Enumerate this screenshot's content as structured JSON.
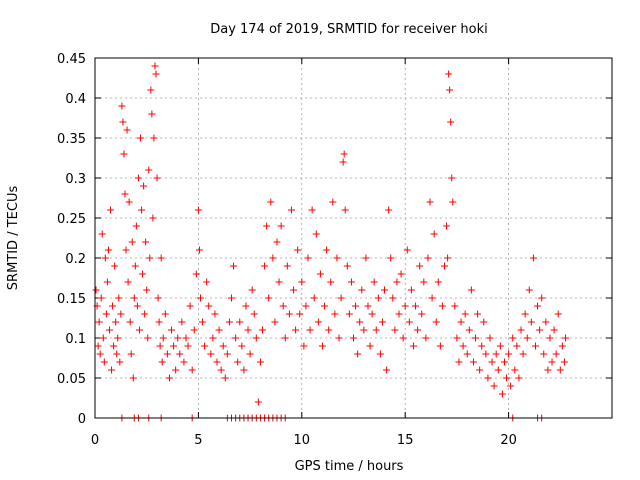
{
  "chart_data": {
    "type": "scatter",
    "title": "Day 174 of 2019, SRMTID for receiver hoki",
    "xlabel": "GPS time / hours",
    "ylabel": "SRMTID / TECUs",
    "xlim": [
      0,
      25
    ],
    "ylim": [
      0,
      0.45
    ],
    "xticks": [
      0,
      5,
      10,
      15,
      20
    ],
    "yticks": [
      0,
      0.05,
      0.1,
      0.15,
      0.2,
      0.25,
      0.3,
      0.35,
      0.4,
      0.45
    ],
    "ytick_labels": [
      "0",
      "0.05",
      "0.1",
      "0.15",
      "0.2",
      "0.25",
      "0.3",
      "0.35",
      "0.4",
      "0.45"
    ],
    "grid": true,
    "marker": "+",
    "series": [
      {
        "color": "#ff0000",
        "points": [
          [
            0.05,
            0.16
          ],
          [
            0.1,
            0.14
          ],
          [
            0.15,
            0.09
          ],
          [
            0.2,
            0.12
          ],
          [
            0.25,
            0.08
          ],
          [
            0.3,
            0.15
          ],
          [
            0.35,
            0.23
          ],
          [
            0.4,
            0.1
          ],
          [
            0.45,
            0.07
          ],
          [
            0.5,
            0.2
          ],
          [
            0.55,
            0.13
          ],
          [
            0.6,
            0.17
          ],
          [
            0.65,
            0.21
          ],
          [
            0.7,
            0.11
          ],
          [
            0.75,
            0.26
          ],
          [
            0.8,
            0.06
          ],
          [
            0.85,
            0.14
          ],
          [
            0.9,
            0.09
          ],
          [
            0.95,
            0.19
          ],
          [
            1.0,
            0.12
          ],
          [
            1.05,
            0.08
          ],
          [
            1.1,
            0.1
          ],
          [
            1.15,
            0.15
          ],
          [
            1.2,
            0.07
          ],
          [
            1.25,
            0.13
          ],
          [
            1.3,
            0.39
          ],
          [
            1.35,
            0.37
          ],
          [
            1.4,
            0.33
          ],
          [
            1.45,
            0.28
          ],
          [
            1.5,
            0.21
          ],
          [
            1.55,
            0.36
          ],
          [
            1.6,
            0.17
          ],
          [
            1.65,
            0.27
          ],
          [
            1.7,
            0.12
          ],
          [
            1.75,
            0.08
          ],
          [
            1.8,
            0.22
          ],
          [
            1.85,
            0.05
          ],
          [
            1.9,
            0.15
          ],
          [
            1.95,
            0.19
          ],
          [
            2.0,
            0.24
          ],
          [
            2.05,
            0.14
          ],
          [
            2.1,
            0.3
          ],
          [
            2.15,
            0.11
          ],
          [
            2.2,
            0.35
          ],
          [
            2.25,
            0.26
          ],
          [
            2.3,
            0.18
          ],
          [
            2.35,
            0.29
          ],
          [
            2.4,
            0.13
          ],
          [
            2.45,
            0.22
          ],
          [
            2.5,
            0.16
          ],
          [
            2.55,
            0.1
          ],
          [
            2.6,
            0.31
          ],
          [
            2.65,
            0.2
          ],
          [
            2.7,
            0.41
          ],
          [
            2.75,
            0.38
          ],
          [
            2.8,
            0.25
          ],
          [
            2.85,
            0.35
          ],
          [
            2.9,
            0.44
          ],
          [
            2.95,
            0.43
          ],
          [
            3.0,
            0.3
          ],
          [
            3.05,
            0.15
          ],
          [
            3.1,
            0.12
          ],
          [
            3.15,
            0.09
          ],
          [
            3.2,
            0.2
          ],
          [
            3.25,
            0.07
          ],
          [
            3.3,
            0.1
          ],
          [
            3.4,
            0.13
          ],
          [
            3.5,
            0.08
          ],
          [
            3.6,
            0.05
          ],
          [
            3.7,
            0.11
          ],
          [
            3.8,
            0.09
          ],
          [
            3.9,
            0.06
          ],
          [
            4.0,
            0.1
          ],
          [
            4.1,
            0.08
          ],
          [
            4.2,
            0.12
          ],
          [
            4.3,
            0.07
          ],
          [
            4.4,
            0.1
          ],
          [
            4.5,
            0.09
          ],
          [
            4.6,
            0.14
          ],
          [
            4.7,
            0.06
          ],
          [
            4.8,
            0.11
          ],
          [
            4.9,
            0.18
          ],
          [
            5.0,
            0.26
          ],
          [
            5.05,
            0.21
          ],
          [
            5.1,
            0.15
          ],
          [
            5.2,
            0.12
          ],
          [
            5.3,
            0.09
          ],
          [
            5.4,
            0.17
          ],
          [
            5.5,
            0.14
          ],
          [
            5.6,
            0.08
          ],
          [
            5.7,
            0.1
          ],
          [
            5.8,
            0.13
          ],
          [
            5.9,
            0.07
          ],
          [
            6.0,
            0.11
          ],
          [
            6.1,
            0.06
          ],
          [
            6.2,
            0.09
          ],
          [
            6.3,
            0.05
          ],
          [
            6.4,
            0.08
          ],
          [
            6.5,
            0.12
          ],
          [
            6.6,
            0.15
          ],
          [
            6.7,
            0.19
          ],
          [
            6.8,
            0.1
          ],
          [
            6.9,
            0.07
          ],
          [
            7.0,
            0.12
          ],
          [
            7.1,
            0.09
          ],
          [
            7.2,
            0.06
          ],
          [
            7.3,
            0.14
          ],
          [
            7.4,
            0.11
          ],
          [
            7.5,
            0.08
          ],
          [
            7.6,
            0.16
          ],
          [
            7.7,
            0.13
          ],
          [
            7.8,
            0.1
          ],
          [
            7.9,
            0.02
          ],
          [
            8.0,
            0.07
          ],
          [
            8.1,
            0.11
          ],
          [
            8.2,
            0.19
          ],
          [
            8.3,
            0.24
          ],
          [
            8.4,
            0.15
          ],
          [
            8.5,
            0.27
          ],
          [
            8.6,
            0.2
          ],
          [
            8.7,
            0.12
          ],
          [
            8.8,
            0.22
          ],
          [
            8.9,
            0.17
          ],
          [
            9.0,
            0.24
          ],
          [
            9.1,
            0.14
          ],
          [
            9.2,
            0.1
          ],
          [
            9.3,
            0.19
          ],
          [
            9.4,
            0.13
          ],
          [
            9.5,
            0.26
          ],
          [
            9.6,
            0.16
          ],
          [
            9.7,
            0.11
          ],
          [
            9.8,
            0.21
          ],
          [
            9.9,
            0.13
          ],
          [
            10.0,
            0.17
          ],
          [
            10.1,
            0.09
          ],
          [
            10.2,
            0.14
          ],
          [
            10.3,
            0.2
          ],
          [
            10.4,
            0.11
          ],
          [
            10.5,
            0.26
          ],
          [
            10.6,
            0.15
          ],
          [
            10.7,
            0.23
          ],
          [
            10.8,
            0.12
          ],
          [
            10.9,
            0.18
          ],
          [
            11.0,
            0.09
          ],
          [
            11.1,
            0.14
          ],
          [
            11.2,
            0.21
          ],
          [
            11.3,
            0.11
          ],
          [
            11.4,
            0.17
          ],
          [
            11.5,
            0.27
          ],
          [
            11.6,
            0.13
          ],
          [
            11.7,
            0.2
          ],
          [
            11.8,
            0.1
          ],
          [
            11.9,
            0.15
          ],
          [
            12.0,
            0.32
          ],
          [
            12.05,
            0.33
          ],
          [
            12.1,
            0.26
          ],
          [
            12.2,
            0.19
          ],
          [
            12.3,
            0.13
          ],
          [
            12.4,
            0.17
          ],
          [
            12.5,
            0.1
          ],
          [
            12.6,
            0.14
          ],
          [
            12.7,
            0.08
          ],
          [
            12.8,
            0.12
          ],
          [
            12.9,
            0.16
          ],
          [
            13.0,
            0.11
          ],
          [
            13.1,
            0.2
          ],
          [
            13.2,
            0.14
          ],
          [
            13.3,
            0.09
          ],
          [
            13.4,
            0.13
          ],
          [
            13.5,
            0.17
          ],
          [
            13.6,
            0.11
          ],
          [
            13.7,
            0.15
          ],
          [
            13.8,
            0.08
          ],
          [
            13.9,
            0.12
          ],
          [
            14.0,
            0.16
          ],
          [
            14.1,
            0.06
          ],
          [
            14.2,
            0.26
          ],
          [
            14.3,
            0.2
          ],
          [
            14.4,
            0.15
          ],
          [
            14.5,
            0.11
          ],
          [
            14.6,
            0.17
          ],
          [
            14.7,
            0.13
          ],
          [
            14.8,
            0.18
          ],
          [
            14.9,
            0.1
          ],
          [
            15.0,
            0.14
          ],
          [
            15.1,
            0.21
          ],
          [
            15.2,
            0.12
          ],
          [
            15.3,
            0.16
          ],
          [
            15.4,
            0.09
          ],
          [
            15.5,
            0.14
          ],
          [
            15.6,
            0.11
          ],
          [
            15.7,
            0.19
          ],
          [
            15.8,
            0.13
          ],
          [
            15.9,
            0.17
          ],
          [
            16.0,
            0.1
          ],
          [
            16.1,
            0.2
          ],
          [
            16.2,
            0.27
          ],
          [
            16.3,
            0.15
          ],
          [
            16.4,
            0.23
          ],
          [
            16.5,
            0.12
          ],
          [
            16.6,
            0.17
          ],
          [
            16.7,
            0.09
          ],
          [
            16.8,
            0.14
          ],
          [
            16.9,
            0.19
          ],
          [
            17.0,
            0.24
          ],
          [
            17.05,
            0.2
          ],
          [
            17.1,
            0.43
          ],
          [
            17.15,
            0.41
          ],
          [
            17.2,
            0.37
          ],
          [
            17.25,
            0.3
          ],
          [
            17.3,
            0.27
          ],
          [
            17.4,
            0.14
          ],
          [
            17.5,
            0.1
          ],
          [
            17.6,
            0.07
          ],
          [
            17.7,
            0.12
          ],
          [
            17.8,
            0.09
          ],
          [
            17.9,
            0.13
          ],
          [
            18.0,
            0.08
          ],
          [
            18.1,
            0.11
          ],
          [
            18.2,
            0.16
          ],
          [
            18.3,
            0.07
          ],
          [
            18.4,
            0.1
          ],
          [
            18.5,
            0.13
          ],
          [
            18.6,
            0.06
          ],
          [
            18.7,
            0.09
          ],
          [
            18.8,
            0.12
          ],
          [
            18.9,
            0.08
          ],
          [
            19.0,
            0.05
          ],
          [
            19.1,
            0.1
          ],
          [
            19.2,
            0.07
          ],
          [
            19.3,
            0.04
          ],
          [
            19.4,
            0.08
          ],
          [
            19.5,
            0.06
          ],
          [
            19.6,
            0.09
          ],
          [
            19.7,
            0.03
          ],
          [
            19.8,
            0.07
          ],
          [
            19.9,
            0.05
          ],
          [
            20.0,
            0.08
          ],
          [
            20.1,
            0.04
          ],
          [
            20.2,
            0.1
          ],
          [
            20.3,
            0.06
          ],
          [
            20.4,
            0.09
          ],
          [
            20.5,
            0.05
          ],
          [
            20.6,
            0.11
          ],
          [
            20.7,
            0.08
          ],
          [
            20.8,
            0.13
          ],
          [
            20.9,
            0.1
          ],
          [
            21.0,
            0.16
          ],
          [
            21.1,
            0.12
          ],
          [
            21.2,
            0.2
          ],
          [
            21.3,
            0.09
          ],
          [
            21.4,
            0.14
          ],
          [
            21.5,
            0.11
          ],
          [
            21.6,
            0.15
          ],
          [
            21.7,
            0.08
          ],
          [
            21.8,
            0.12
          ],
          [
            21.9,
            0.06
          ],
          [
            22.0,
            0.1
          ],
          [
            22.1,
            0.07
          ],
          [
            22.2,
            0.11
          ],
          [
            22.3,
            0.08
          ],
          [
            22.4,
            0.13
          ],
          [
            22.5,
            0.06
          ],
          [
            22.6,
            0.09
          ],
          [
            22.7,
            0.07
          ],
          [
            22.75,
            0.1
          ]
        ],
        "zero_points": [
          1.3,
          1.9,
          2.1,
          2.6,
          3.2,
          4.7,
          6.4,
          6.6,
          6.8,
          7.0,
          7.2,
          7.4,
          7.6,
          7.8,
          8.0,
          8.2,
          8.4,
          8.6,
          8.8,
          9.0,
          9.2,
          20.2,
          21.4,
          21.6
        ]
      }
    ]
  }
}
